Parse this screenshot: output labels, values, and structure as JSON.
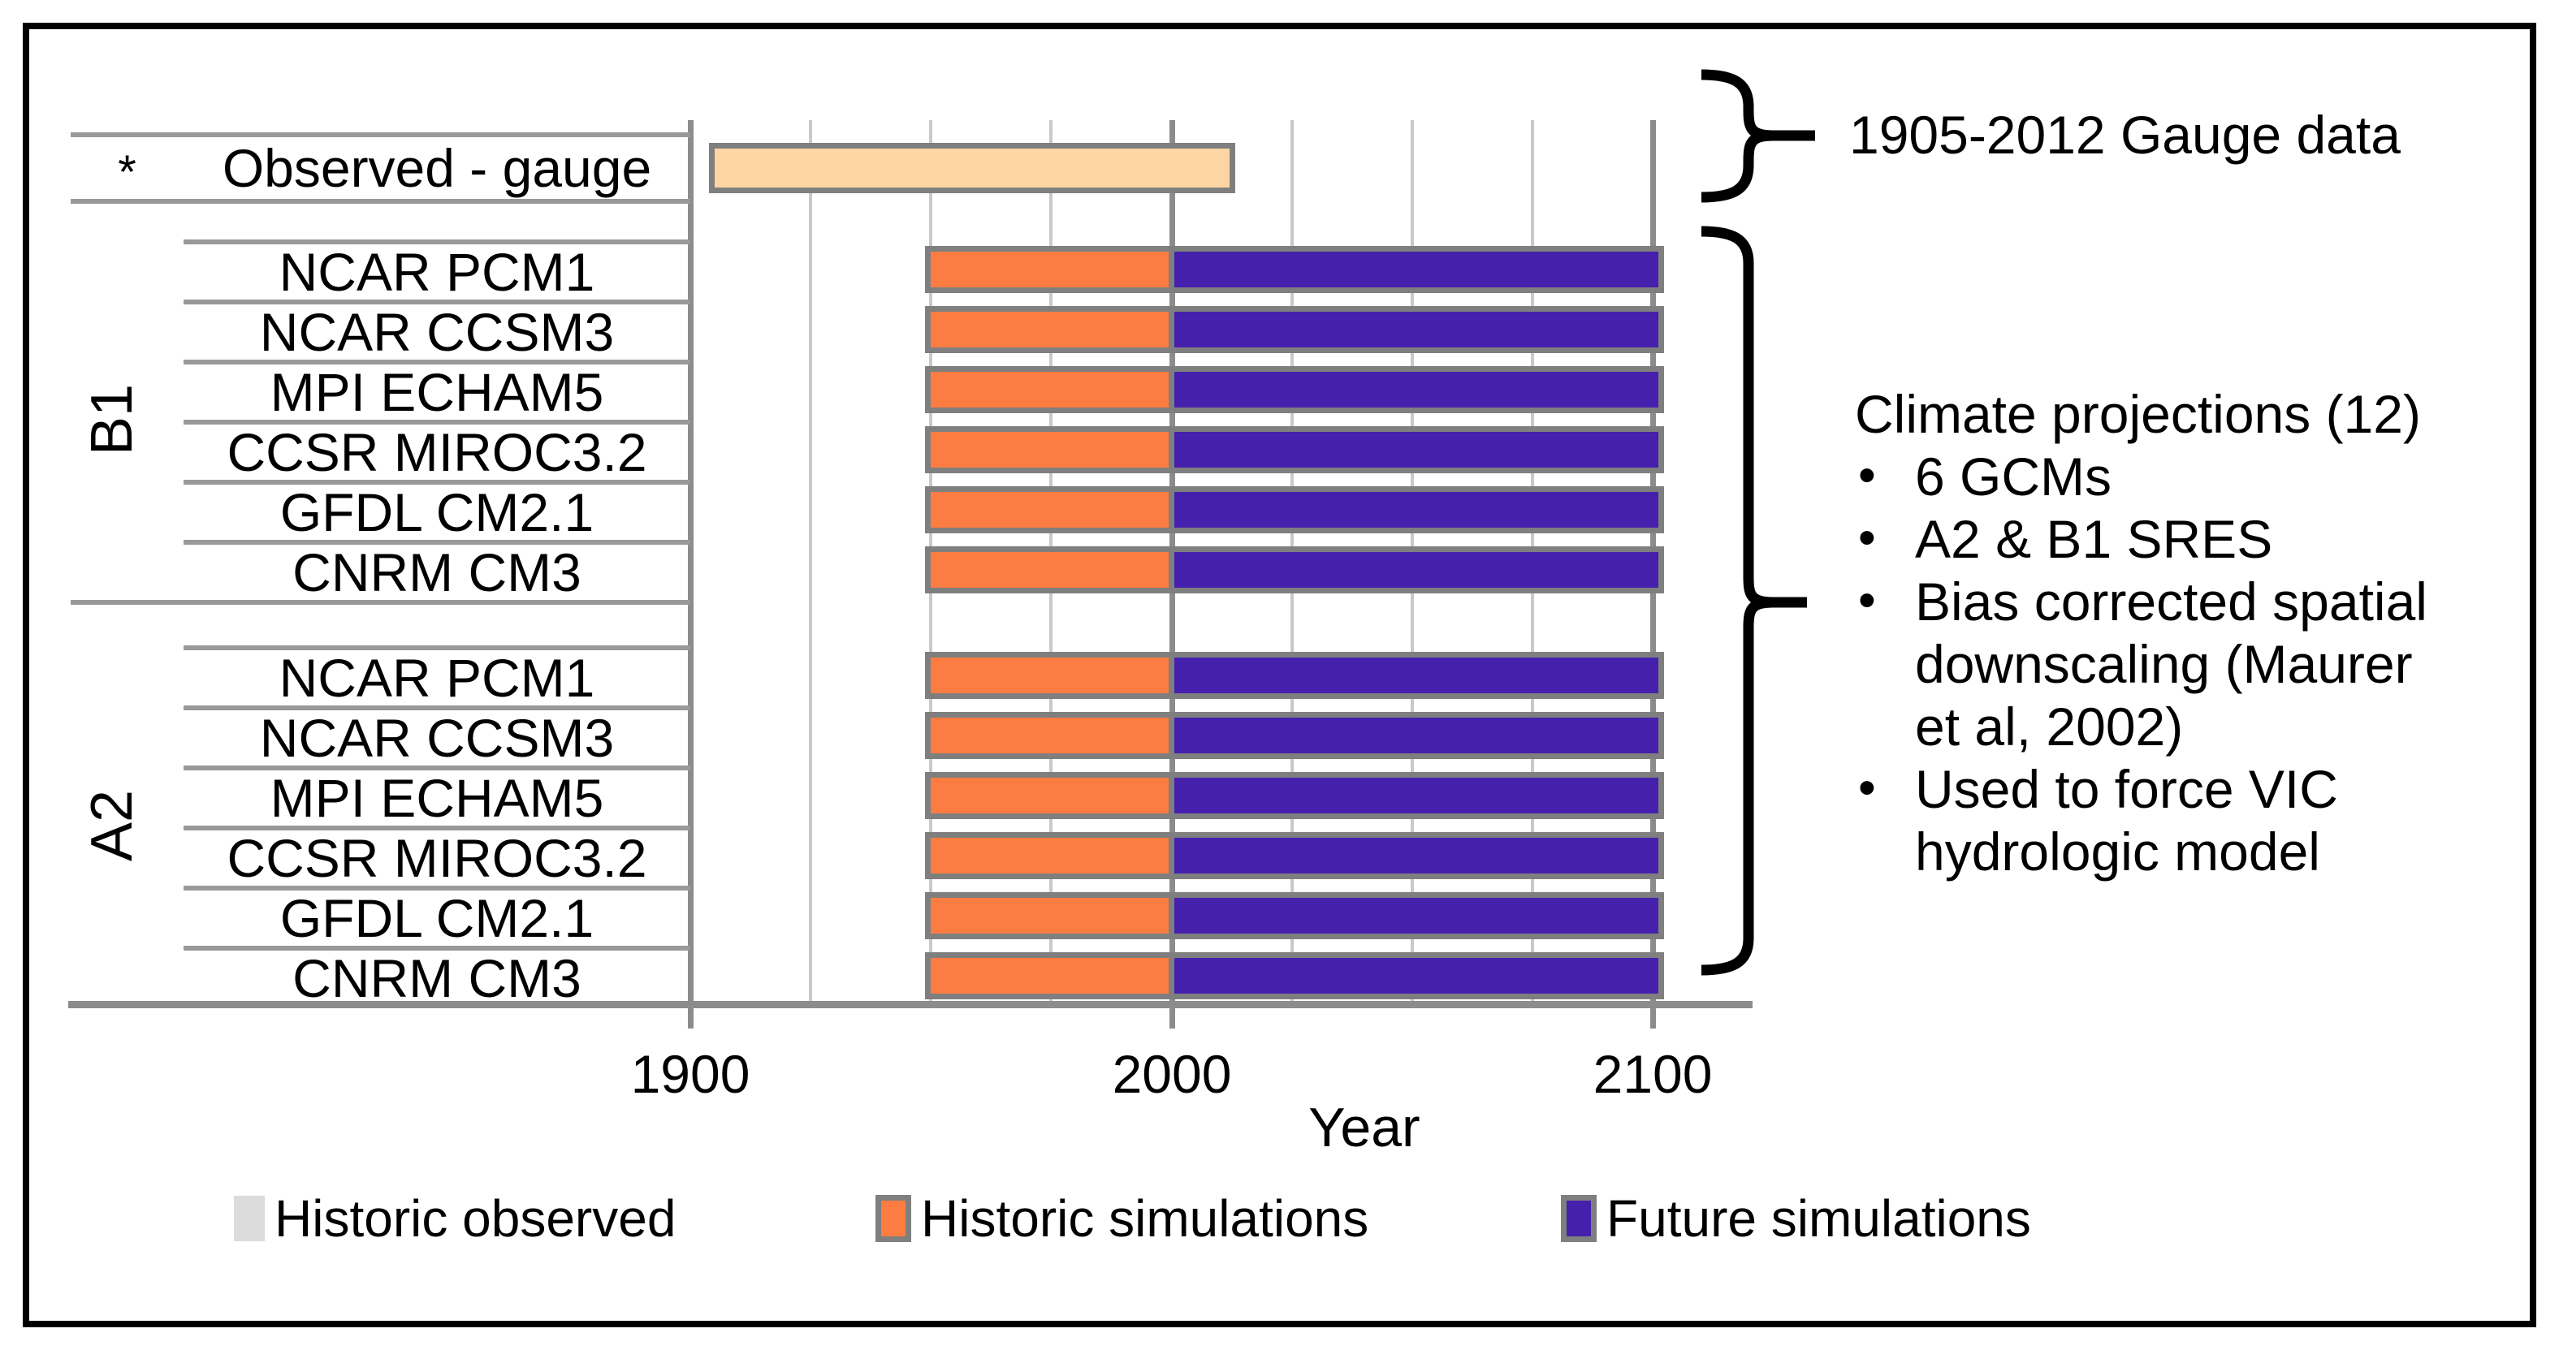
{
  "chart_data": {
    "type": "bar",
    "subtype": "timeline-gantt",
    "title": "",
    "xlabel": "Year",
    "x_range_years": [
      1889,
      2120
    ],
    "x_ticks": [
      1900,
      2000,
      2100
    ],
    "x_gridlines_minor": [
      1925,
      1950,
      1975,
      2025,
      2050,
      2075
    ],
    "x_gridlines_major": [
      1900,
      2000,
      2100
    ],
    "grid": "on",
    "observed": {
      "marker": "*",
      "label": "Observed - gauge",
      "series": "Historic observed",
      "start_year": 1905,
      "end_year": 2012
    },
    "groups": [
      {
        "name": "B1",
        "models": [
          "NCAR PCM1",
          "NCAR CCSM3",
          "MPI ECHAM5",
          "CCSR MIROC3.2",
          "GFDL CM2.1",
          "CNRM CM3"
        ]
      },
      {
        "name": "A2",
        "models": [
          "NCAR PCM1",
          "NCAR CCSM3",
          "MPI ECHAM5",
          "CCSR MIROC3.2",
          "GFDL CM2.1",
          "CNRM CM3"
        ]
      }
    ],
    "model_series": [
      {
        "name": "Historic simulations",
        "start_year": 1950,
        "end_year": 2000,
        "color_key": "historic"
      },
      {
        "name": "Future simulations",
        "start_year": 2000,
        "end_year": 2100,
        "color_key": "future"
      }
    ],
    "legend": [
      {
        "label": "Historic observed",
        "color_key": "legend_observed",
        "bordered": false
      },
      {
        "label": "Historic simulations",
        "color_key": "historic",
        "bordered": true
      },
      {
        "label": "Future simulations",
        "color_key": "future",
        "bordered": true
      }
    ],
    "legend_position": "bottom"
  },
  "annotations": {
    "gauge_note": "1905-2012 Gauge data",
    "projections_heading": "Climate projections (12)",
    "bullets": [
      "6 GCMs",
      "A2 & B1 SRES",
      "Bias corrected spatial downscaling (Maurer et al, 2002)",
      "Used to force VIC hydrologic model"
    ]
  },
  "colors": {
    "historic": "#FC7C41",
    "future": "#4520AC",
    "observed_bar": "#FDD6A4",
    "legend_observed": "#DCDCDC",
    "bar_border": "#7F7F7F",
    "grid_minor": "#C9C9C9",
    "grid_major": "#8C8C8C",
    "separator": "#999999"
  }
}
